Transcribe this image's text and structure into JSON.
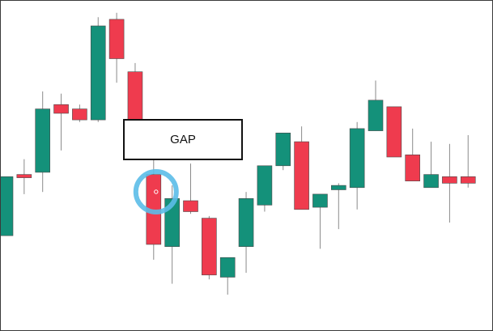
{
  "chart_data": {
    "type": "candlestick",
    "title": "",
    "xlabel": "",
    "ylabel": "",
    "axes_visible": false,
    "grid": false,
    "colors": {
      "up": "#14917a",
      "down": "#ef3b4e",
      "wick": "#8a8a8a",
      "highlight": "#5bbde8"
    },
    "candles": [
      {
        "open": 44,
        "close": 71,
        "high": 71,
        "low": 44,
        "dir": "up"
      },
      {
        "open": 72,
        "close": 71,
        "high": 79,
        "low": 63,
        "dir": "down"
      },
      {
        "open": 73,
        "close": 102,
        "high": 110,
        "low": 64,
        "dir": "up"
      },
      {
        "open": 104,
        "close": 100,
        "high": 109,
        "low": 83,
        "dir": "down"
      },
      {
        "open": 102,
        "close": 97,
        "high": 104,
        "low": 96,
        "dir": "down"
      },
      {
        "open": 97,
        "close": 140,
        "high": 144,
        "low": 96,
        "dir": "up"
      },
      {
        "open": 143,
        "close": 125,
        "high": 146,
        "low": 114,
        "dir": "down"
      },
      {
        "open": 119,
        "close": 94,
        "high": 123,
        "low": 84,
        "dir": "down"
      },
      {
        "open": 72,
        "close": 40,
        "high": 80,
        "low": 33,
        "dir": "down"
      },
      {
        "open": 39,
        "close": 61,
        "high": 67,
        "low": 22,
        "dir": "up"
      },
      {
        "open": 60,
        "close": 55,
        "high": 77,
        "low": 54,
        "dir": "down"
      },
      {
        "open": 52,
        "close": 26,
        "high": 53,
        "low": 24,
        "dir": "down"
      },
      {
        "open": 25,
        "close": 34,
        "high": 34,
        "low": 17,
        "dir": "up"
      },
      {
        "open": 39,
        "close": 61,
        "high": 64,
        "low": 27,
        "dir": "up"
      },
      {
        "open": 58,
        "close": 76,
        "high": 76,
        "low": 55,
        "dir": "up"
      },
      {
        "open": 76,
        "close": 91,
        "high": 91,
        "low": 74,
        "dir": "up"
      },
      {
        "open": 87,
        "close": 56,
        "high": 94,
        "low": 56,
        "dir": "down"
      },
      {
        "open": 57,
        "close": 63,
        "high": 63,
        "low": 38,
        "dir": "up"
      },
      {
        "open": 65,
        "close": 67,
        "high": 68,
        "low": 47,
        "dir": "up"
      },
      {
        "open": 66,
        "close": 93,
        "high": 96,
        "low": 56,
        "dir": "up"
      },
      {
        "open": 92,
        "close": 106,
        "high": 115,
        "low": 92,
        "dir": "up"
      },
      {
        "open": 103,
        "close": 80,
        "high": 103,
        "low": 80,
        "dir": "down"
      },
      {
        "open": 81,
        "close": 69,
        "high": 93,
        "low": 69,
        "dir": "down"
      },
      {
        "open": 66,
        "close": 72,
        "high": 87,
        "low": 66,
        "dir": "up"
      },
      {
        "open": 71,
        "close": 68,
        "high": 86,
        "low": 50,
        "dir": "down"
      },
      {
        "open": 71,
        "close": 68,
        "high": 90,
        "low": 66,
        "dir": "down"
      }
    ],
    "annotations": [
      {
        "text": "GAP",
        "type": "callout-box"
      },
      {
        "type": "circle-marker",
        "candle_index": 8
      }
    ]
  }
}
